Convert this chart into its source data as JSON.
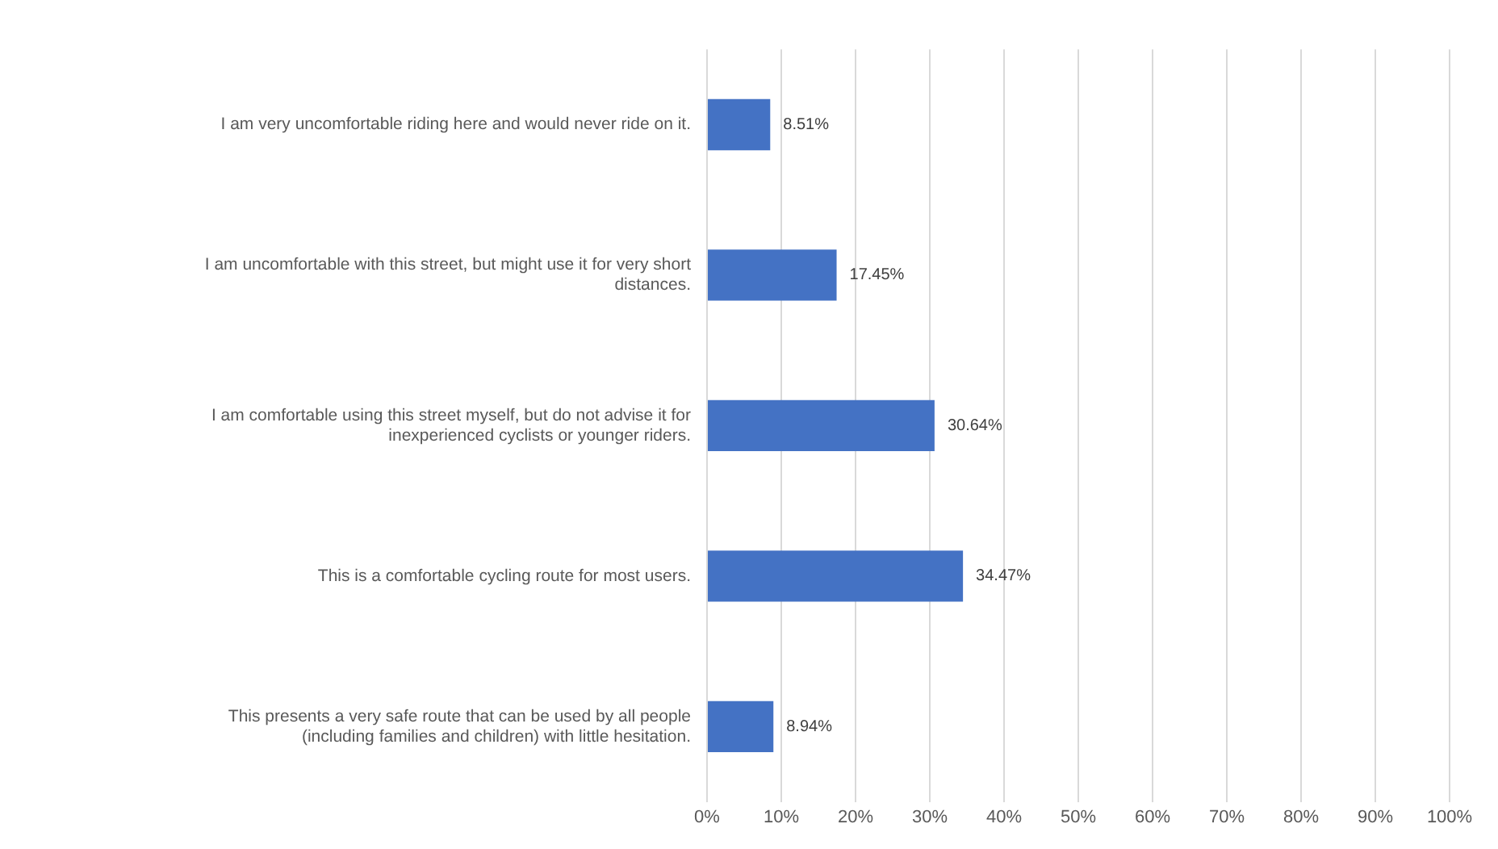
{
  "chart_data": {
    "type": "bar",
    "orientation": "horizontal",
    "categories": [
      "I am very uncomfortable riding here and would never ride on it.",
      "I am uncomfortable with this street, but might use it for very short distances.",
      "I am comfortable using this street myself, but do not advise it for inexperienced cyclists or younger riders.",
      "This is a comfortable cycling route for most users.",
      "This presents a very safe route that can be used by all people (including families and children) with little hesitation."
    ],
    "values": [
      8.51,
      17.45,
      30.64,
      34.47,
      8.94
    ],
    "value_labels": [
      "8.51%",
      "17.45%",
      "30.64%",
      "34.47%",
      "8.94%"
    ],
    "color": "#4472c4",
    "xlim": [
      0,
      100
    ],
    "xticks": [
      {
        "value": 0,
        "label": "0%"
      },
      {
        "value": 10,
        "label": "10%"
      },
      {
        "value": 20,
        "label": "20%"
      },
      {
        "value": 30,
        "label": "30%"
      },
      {
        "value": 40,
        "label": "40%"
      },
      {
        "value": 50,
        "label": "50%"
      },
      {
        "value": 60,
        "label": "60%"
      },
      {
        "value": 70,
        "label": "70%"
      },
      {
        "value": 80,
        "label": "80%"
      },
      {
        "value": 90,
        "label": "90%"
      },
      {
        "value": 100,
        "label": "100%"
      }
    ],
    "grid": "x",
    "legend": false
  }
}
